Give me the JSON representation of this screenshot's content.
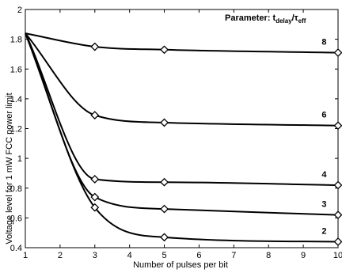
{
  "chart_data": {
    "type": "line",
    "xlabel": "Number of pulses per bit",
    "ylabel": "Voltage level for 1 mW FCC power limit",
    "xlim": [
      1,
      10
    ],
    "ylim": [
      0.4,
      2
    ],
    "xticks": [
      "1",
      "2",
      "3",
      "4",
      "5",
      "6",
      "7",
      "8",
      "9",
      "10"
    ],
    "yticks": [
      "0.4",
      "0.6",
      "0.8",
      "1",
      "1.2",
      "1.4",
      "1.6",
      "1.8",
      "2"
    ],
    "legend_title": {
      "prefix": "Parameter: t",
      "sub1": "delay",
      "slash": "/τ",
      "sub2": "eff"
    },
    "marker": "diamond",
    "grid": false,
    "series": [
      {
        "name": "8",
        "x": [
          1,
          3,
          5,
          10
        ],
        "y": [
          1.84,
          1.75,
          1.73,
          1.71
        ]
      },
      {
        "name": "6",
        "x": [
          1,
          3,
          5,
          10
        ],
        "y": [
          1.84,
          1.29,
          1.24,
          1.22
        ]
      },
      {
        "name": "4",
        "x": [
          1,
          3,
          5,
          10
        ],
        "y": [
          1.84,
          0.86,
          0.84,
          0.82
        ]
      },
      {
        "name": "3",
        "x": [
          1,
          3,
          5,
          10
        ],
        "y": [
          1.84,
          0.74,
          0.66,
          0.62
        ]
      },
      {
        "name": "2",
        "x": [
          1,
          3,
          5,
          10
        ],
        "y": [
          1.84,
          0.67,
          0.47,
          0.44
        ]
      }
    ]
  }
}
